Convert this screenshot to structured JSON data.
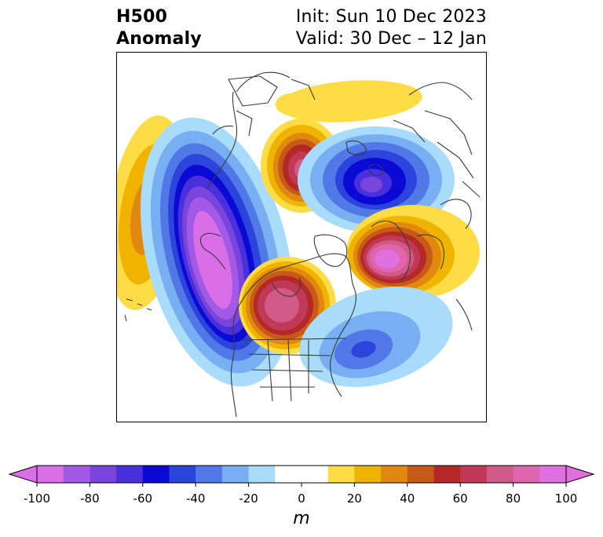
{
  "header": {
    "title_line1": "H500",
    "title_line2": "Anomaly",
    "init_label": "Init: Sun 10 Dec 2023",
    "valid_label": "Valid: 30 Dec – 12 Jan"
  },
  "colorbar": {
    "unit": "m",
    "range": [
      -100,
      100
    ],
    "step": 10,
    "tick_labels": [
      "-100",
      "-80",
      "-60",
      "-40",
      "-20",
      "0",
      "20",
      "40",
      "60",
      "80",
      "100"
    ],
    "colors": [
      "#d96ee6",
      "#a25ae6",
      "#7a45dd",
      "#4a2fdc",
      "#0a0ad4",
      "#2a44dc",
      "#5078e6",
      "#78aef2",
      "#a8dcfa",
      "#ffffff",
      "#ffffff",
      "#fddc46",
      "#f0b400",
      "#e08810",
      "#c85a18",
      "#b42828",
      "#c03a58",
      "#d25a88",
      "#e065ae",
      "#e070e0"
    ],
    "extend": "both"
  },
  "map": {
    "projection": "north-polar-stereographic",
    "region": "Northern Hemisphere",
    "features": [
      {
        "name": "ridge-north-pacific",
        "sign": "positive",
        "peak": 40
      },
      {
        "name": "trough-alaska-west-canada",
        "sign": "negative",
        "peak": -100
      },
      {
        "name": "ridge-hudson-bay-east-canada",
        "sign": "positive",
        "peak": 80
      },
      {
        "name": "ridge-east-siberian-sea",
        "sign": "positive",
        "peak": 70
      },
      {
        "name": "trough-kara-sea",
        "sign": "negative",
        "peak": -70
      },
      {
        "name": "ridge-scandinavia",
        "sign": "positive",
        "peak": 100
      },
      {
        "name": "trough-north-atlantic",
        "sign": "negative",
        "peak": -40
      }
    ]
  }
}
